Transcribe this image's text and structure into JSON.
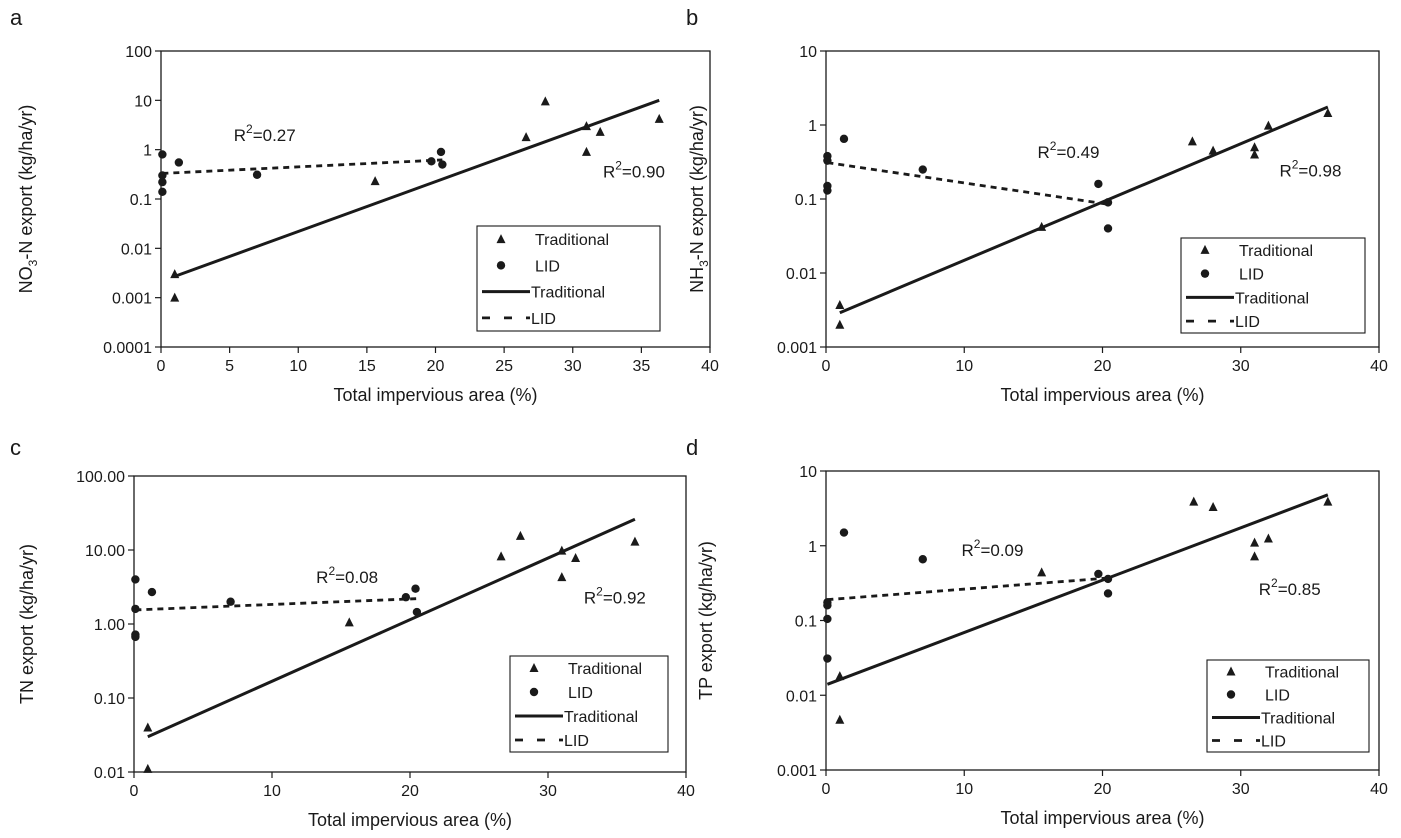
{
  "chart_data": [
    {
      "panel_label": "a",
      "type": "scatter",
      "title": "",
      "xlabel": "Total impervious area (%)",
      "ylabel_main": "NO",
      "ylabel_sub": "3",
      "ylabel_rest": "-N export (kg/ha/yr)",
      "xlim": [
        0,
        40
      ],
      "ylim": [
        0.0001,
        100
      ],
      "yscale": "log",
      "x_ticks": [
        0,
        5,
        10,
        15,
        20,
        25,
        30,
        35,
        40
      ],
      "x_tick_labels": [
        "0",
        "5",
        "10",
        "15",
        "20",
        "25",
        "30",
        "35",
        "40"
      ],
      "y_ticks": [
        0.0001,
        0.001,
        0.01,
        0.1,
        1,
        10,
        100
      ],
      "y_tick_labels": [
        "0.0001",
        "0.001",
        "0.01",
        "0.1",
        "1",
        "10",
        "100"
      ],
      "grid": false,
      "legend_position": "lower-right",
      "legend": [
        {
          "label": "Traditional",
          "kind": "triangle"
        },
        {
          "label": "LID",
          "kind": "circle"
        },
        {
          "label": "Traditional",
          "kind": "solid"
        },
        {
          "label": "LID",
          "kind": "dashed"
        }
      ],
      "series": [
        {
          "name": "Traditional",
          "marker": "triangle",
          "points": [
            [
              1.0,
              0.003
            ],
            [
              1.0,
              0.001
            ],
            [
              15.6,
              0.23
            ],
            [
              26.6,
              1.8
            ],
            [
              28.0,
              9.5
            ],
            [
              31.0,
              3.0
            ],
            [
              31.0,
              0.9
            ],
            [
              32.0,
              2.3
            ],
            [
              36.3,
              4.2
            ]
          ]
        },
        {
          "name": "LID",
          "marker": "circle",
          "points": [
            [
              0.1,
              0.8
            ],
            [
              0.1,
              0.3
            ],
            [
              0.1,
              0.22
            ],
            [
              0.1,
              0.14
            ],
            [
              1.3,
              0.55
            ],
            [
              7.0,
              0.31
            ],
            [
              19.7,
              0.58
            ],
            [
              20.4,
              0.9
            ],
            [
              20.5,
              0.5
            ]
          ]
        }
      ],
      "fits": [
        {
          "name": "Traditional",
          "style": "solid",
          "x": [
            1.0,
            36.3
          ],
          "y": [
            0.0027,
            10.0
          ]
        },
        {
          "name": "LID",
          "style": "dashed",
          "x": [
            0.1,
            20.5
          ],
          "y": [
            0.33,
            0.62
          ]
        }
      ],
      "annotations": [
        {
          "pre": "R",
          "sup": "2",
          "post": "=0.27",
          "x": 5.3,
          "y": 1.5
        },
        {
          "pre": "R",
          "sup": "2",
          "post": "=0.90",
          "x": 32.2,
          "y": 0.27
        }
      ]
    },
    {
      "panel_label": "b",
      "type": "scatter",
      "title": "",
      "xlabel": "Total impervious area (%)",
      "ylabel_main": "NH",
      "ylabel_sub": "3",
      "ylabel_rest": "-N export (kg/ha/yr)",
      "xlim": [
        0,
        40
      ],
      "ylim": [
        0.001,
        10
      ],
      "yscale": "log",
      "x_ticks": [
        0,
        10,
        20,
        30,
        40
      ],
      "x_tick_labels": [
        "0",
        "10",
        "20",
        "30",
        "40"
      ],
      "y_ticks": [
        0.001,
        0.01,
        0.1,
        1,
        10
      ],
      "y_tick_labels": [
        "0.001",
        "0.01",
        "0.1",
        "1",
        "10"
      ],
      "grid": false,
      "legend_position": "lower-right",
      "legend": [
        {
          "label": "Traditional",
          "kind": "triangle"
        },
        {
          "label": "LID",
          "kind": "circle"
        },
        {
          "label": "Traditional",
          "kind": "solid"
        },
        {
          "label": "LID",
          "kind": "dashed"
        }
      ],
      "series": [
        {
          "name": "Traditional",
          "marker": "triangle",
          "points": [
            [
              1.0,
              0.0037
            ],
            [
              1.0,
              0.002
            ],
            [
              15.6,
              0.042
            ],
            [
              26.5,
              0.6
            ],
            [
              28.0,
              0.45
            ],
            [
              31.0,
              0.5
            ],
            [
              31.0,
              0.4
            ],
            [
              32.0,
              0.98
            ],
            [
              36.3,
              1.45
            ]
          ]
        },
        {
          "name": "LID",
          "marker": "circle",
          "points": [
            [
              0.1,
              0.38
            ],
            [
              0.1,
              0.33
            ],
            [
              0.1,
              0.15
            ],
            [
              0.1,
              0.13
            ],
            [
              1.3,
              0.65
            ],
            [
              7.0,
              0.25
            ],
            [
              19.7,
              0.16
            ],
            [
              20.4,
              0.09
            ],
            [
              20.4,
              0.04
            ]
          ]
        }
      ],
      "fits": [
        {
          "name": "Traditional",
          "style": "solid",
          "x": [
            1.0,
            36.3
          ],
          "y": [
            0.0029,
            1.75
          ]
        },
        {
          "name": "LID",
          "style": "dashed",
          "x": [
            0.1,
            20.4
          ],
          "y": [
            0.31,
            0.085
          ]
        }
      ],
      "annotations": [
        {
          "pre": "R",
          "sup": "2",
          "post": "=0.49",
          "x": 15.3,
          "y": 0.36
        },
        {
          "pre": "R",
          "sup": "2",
          "post": "=0.98",
          "x": 32.8,
          "y": 0.2
        }
      ]
    },
    {
      "panel_label": "c",
      "type": "scatter",
      "title": "",
      "xlabel": "Total impervious area (%)",
      "ylabel_main": "TN export (kg/ha/yr)",
      "ylabel_sub": "",
      "ylabel_rest": "",
      "xlim": [
        0,
        40
      ],
      "ylim": [
        0.01,
        100
      ],
      "yscale": "log",
      "x_ticks": [
        0,
        10,
        20,
        30,
        40
      ],
      "x_tick_labels": [
        "0",
        "10",
        "20",
        "30",
        "40"
      ],
      "y_ticks": [
        0.01,
        0.1,
        1,
        10,
        100
      ],
      "y_tick_labels": [
        "0.01",
        "0.10",
        "1.00",
        "10.00",
        "100.00"
      ],
      "grid": false,
      "legend_position": "lower-right",
      "legend": [
        {
          "label": "Traditional",
          "kind": "triangle"
        },
        {
          "label": "LID",
          "kind": "circle"
        },
        {
          "label": "Traditional",
          "kind": "solid"
        },
        {
          "label": "LID",
          "kind": "dashed"
        }
      ],
      "series": [
        {
          "name": "Traditional",
          "marker": "triangle",
          "points": [
            [
              1.0,
              0.04
            ],
            [
              1.0,
              0.011
            ],
            [
              15.6,
              1.05
            ],
            [
              26.6,
              8.2
            ],
            [
              28.0,
              15.5
            ],
            [
              31.0,
              9.8
            ],
            [
              31.0,
              4.3
            ],
            [
              32.0,
              7.8
            ],
            [
              36.3,
              13.0
            ]
          ]
        },
        {
          "name": "LID",
          "marker": "circle",
          "points": [
            [
              0.1,
              4.0
            ],
            [
              0.1,
              1.6
            ],
            [
              0.1,
              0.72
            ],
            [
              0.1,
              0.67
            ],
            [
              1.3,
              2.7
            ],
            [
              7.0,
              2.0
            ],
            [
              19.7,
              2.3
            ],
            [
              20.4,
              3.0
            ],
            [
              20.5,
              1.45
            ]
          ]
        }
      ],
      "fits": [
        {
          "name": "Traditional",
          "style": "solid",
          "x": [
            1.0,
            36.3
          ],
          "y": [
            0.03,
            26.0
          ]
        },
        {
          "name": "LID",
          "style": "dashed",
          "x": [
            0.1,
            20.5
          ],
          "y": [
            1.55,
            2.2
          ]
        }
      ],
      "annotations": [
        {
          "pre": "R",
          "sup": "2",
          "post": "=0.08",
          "x": 13.2,
          "y": 3.6
        },
        {
          "pre": "R",
          "sup": "2",
          "post": "=0.92",
          "x": 32.6,
          "y": 1.9
        }
      ]
    },
    {
      "panel_label": "d",
      "type": "scatter",
      "title": "",
      "xlabel": "Total impervious area (%)",
      "ylabel_main": "TP export (kg/ha/yr)",
      "ylabel_sub": "",
      "ylabel_rest": "",
      "xlim": [
        0,
        40
      ],
      "ylim": [
        0.001,
        10
      ],
      "yscale": "log",
      "x_ticks": [
        0,
        10,
        20,
        30,
        40
      ],
      "x_tick_labels": [
        "0",
        "10",
        "20",
        "30",
        "40"
      ],
      "y_ticks": [
        0.001,
        0.01,
        0.1,
        1,
        10
      ],
      "y_tick_labels": [
        "0.001",
        "0.01",
        "0.1",
        "1",
        "10"
      ],
      "grid": false,
      "legend_position": "lower-right",
      "legend": [
        {
          "label": "Traditional",
          "kind": "triangle"
        },
        {
          "label": "LID",
          "kind": "circle"
        },
        {
          "label": "Traditional",
          "kind": "solid"
        },
        {
          "label": "LID",
          "kind": "dashed"
        }
      ],
      "series": [
        {
          "name": "Traditional",
          "marker": "triangle",
          "points": [
            [
              1.0,
              0.018
            ],
            [
              1.0,
              0.0047
            ],
            [
              15.6,
              0.44
            ],
            [
              26.6,
              3.9
            ],
            [
              28.0,
              3.3
            ],
            [
              31.0,
              1.1
            ],
            [
              31.0,
              0.72
            ],
            [
              32.0,
              1.25
            ],
            [
              36.3,
              3.9
            ]
          ]
        },
        {
          "name": "LID",
          "marker": "circle",
          "points": [
            [
              0.1,
              0.175
            ],
            [
              0.1,
              0.16
            ],
            [
              0.1,
              0.105
            ],
            [
              0.1,
              0.031
            ],
            [
              1.3,
              1.5
            ],
            [
              7.0,
              0.66
            ],
            [
              19.7,
              0.42
            ],
            [
              20.4,
              0.36
            ],
            [
              20.4,
              0.23
            ]
          ]
        }
      ],
      "fits": [
        {
          "name": "Traditional",
          "style": "solid",
          "x": [
            0.1,
            36.3
          ],
          "y": [
            0.014,
            4.8
          ]
        },
        {
          "name": "LID",
          "style": "dashed",
          "x": [
            0.1,
            20.4
          ],
          "y": [
            0.19,
            0.37
          ]
        }
      ],
      "annotations": [
        {
          "pre": "R",
          "sup": "2",
          "post": "=0.09",
          "x": 9.8,
          "y": 0.73
        },
        {
          "pre": "R",
          "sup": "2",
          "post": "=0.85",
          "x": 31.3,
          "y": 0.22
        }
      ]
    }
  ]
}
